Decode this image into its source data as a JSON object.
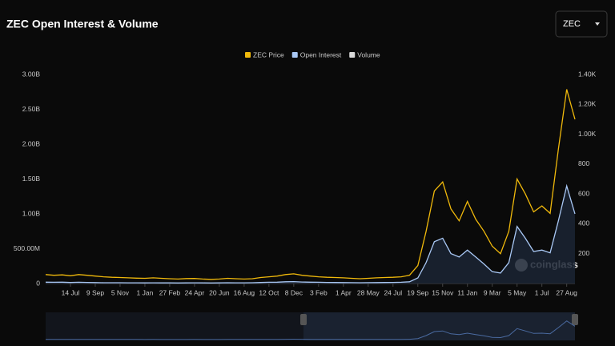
{
  "chart_data": {
    "type": "line",
    "title": "ZEC Open Interest & Volume",
    "categories": [
      null,
      null,
      null,
      "14 Jul",
      null,
      null,
      "9 Sep",
      null,
      null,
      "5 Nov",
      null,
      null,
      "1 Jan",
      null,
      null,
      "27 Feb",
      null,
      null,
      "24 Apr",
      null,
      null,
      "20 Jun",
      null,
      null,
      "16 Aug",
      null,
      null,
      "12 Oct",
      null,
      null,
      "8 Dec",
      null,
      null,
      "3 Feb",
      null,
      null,
      "1 Apr",
      null,
      null,
      "28 May",
      null,
      null,
      "24 Jul",
      null,
      null,
      "19 Sep",
      null,
      null,
      "15 Nov",
      null,
      null,
      "11 Jan",
      null,
      null,
      "9 Mar",
      null,
      null,
      "5 May",
      null,
      null,
      "1 Jul",
      null,
      null,
      "27 Aug",
      null
    ],
    "series": [
      {
        "name": "ZEC Price",
        "color": "#f0b90b",
        "axis": "y2",
        "values": [
          60,
          55,
          58,
          52,
          60,
          55,
          50,
          45,
          42,
          40,
          38,
          36,
          35,
          38,
          35,
          32,
          30,
          33,
          34,
          30,
          28,
          30,
          35,
          32,
          30,
          32,
          40,
          45,
          50,
          60,
          65,
          55,
          50,
          45,
          42,
          40,
          38,
          35,
          32,
          35,
          38,
          40,
          42,
          45,
          55,
          120,
          350,
          620,
          680,
          500,
          420,
          550,
          430,
          350,
          250,
          200,
          350,
          700,
          600,
          480,
          520,
          470,
          900,
          1300,
          1100
        ]
      },
      {
        "name": "Open Interest",
        "color": "#a9c8f5",
        "values": [
          20000000,
          18000000,
          20000000,
          15000000,
          18000000,
          16000000,
          14000000,
          12000000,
          12000000,
          11000000,
          10000000,
          10000000,
          9000000,
          10000000,
          9000000,
          9000000,
          8000000,
          9000000,
          10000000,
          9000000,
          8000000,
          9000000,
          12000000,
          10000000,
          10000000,
          11000000,
          15000000,
          18000000,
          20000000,
          25000000,
          28000000,
          22000000,
          20000000,
          18000000,
          16000000,
          15000000,
          14000000,
          13000000,
          12000000,
          13000000,
          14000000,
          15000000,
          16000000,
          18000000,
          25000000,
          80000000,
          300000000,
          600000000,
          650000000,
          430000000,
          380000000,
          480000000,
          380000000,
          280000000,
          170000000,
          150000000,
          300000000,
          820000000,
          650000000,
          460000000,
          480000000,
          440000000,
          900000000,
          1400000000,
          1000000000
        ]
      },
      {
        "name": "Volume",
        "color": "#d9d9d9",
        "values": [
          null,
          null,
          null,
          null,
          null,
          null,
          null,
          null,
          null,
          null,
          null,
          null,
          null,
          null,
          null,
          null,
          null,
          null,
          null,
          null,
          null,
          null,
          null,
          null,
          null,
          null,
          null,
          null,
          null,
          null,
          null,
          null,
          null,
          null,
          null,
          null,
          null,
          null,
          null,
          null,
          null,
          null,
          null,
          null,
          null,
          null,
          null,
          null,
          null,
          null,
          null,
          null,
          null,
          null,
          null,
          null,
          null,
          null,
          null,
          null,
          null,
          null,
          null,
          null,
          null
        ]
      }
    ],
    "ylim": [
      0,
      3000000000
    ],
    "yticks": [
      0,
      {
        "value": 500000000,
        "label": "500.00M"
      },
      {
        "value": 1000000000,
        "label": "1.00B"
      },
      {
        "value": 1500000000,
        "label": "1.50B"
      },
      {
        "value": 2000000000,
        "label": "2.00B"
      },
      {
        "value": 2500000000,
        "label": "2.50B"
      },
      {
        "value": 3000000000,
        "label": "3.00B"
      }
    ],
    "y2lim": [
      0,
      1400
    ],
    "y2ticks": [
      200,
      400,
      600,
      800,
      {
        "value": 1000,
        "label": "1.00K"
      },
      {
        "value": 1200,
        "label": "1.20K"
      },
      {
        "value": 1400,
        "label": "1.40K"
      }
    ],
    "grid": false,
    "legend": "top"
  },
  "selector": "ZEC",
  "watermark": "coinglass"
}
